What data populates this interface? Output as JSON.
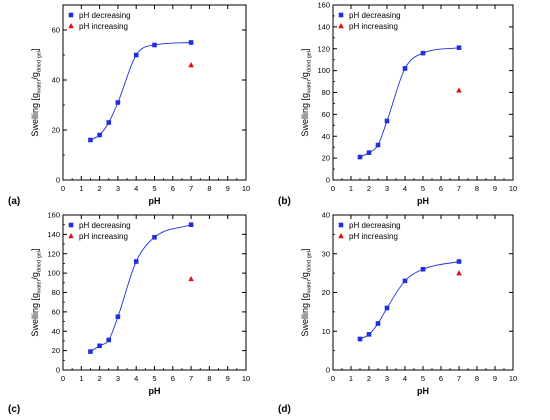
{
  "figure": {
    "legend": {
      "decreasing": "pH decreasing",
      "increasing": "pH increasing"
    },
    "colors": {
      "decreasing": "#1f2fe0",
      "increasing": "#e01010",
      "fit": "#1f2fe0",
      "axis": "#000000"
    }
  },
  "chart_data": [
    {
      "type": "scatter",
      "panel_label": "(a)",
      "xlabel": "pH",
      "ylabel": {
        "main": "Swelling [g",
        "sub1": "water",
        "mid": "/g",
        "sub2": "dried gel",
        "end": "]"
      },
      "xlim": [
        0,
        10
      ],
      "ylim": [
        0,
        70
      ],
      "xticks": [
        0,
        1,
        2,
        3,
        4,
        5,
        6,
        7,
        8,
        9,
        10
      ],
      "yticks": [
        0,
        20,
        40,
        60
      ],
      "legend_position": "top-left",
      "series": [
        {
          "name": "pH decreasing",
          "marker": "square",
          "fit_curve": true,
          "x": [
            1.5,
            2.0,
            2.5,
            3.0,
            4.0,
            5.0,
            7.0
          ],
          "y": [
            16,
            18,
            23,
            31,
            50,
            54,
            55
          ]
        },
        {
          "name": "pH increasing",
          "marker": "triangle",
          "x": [
            7.0
          ],
          "y": [
            46
          ]
        }
      ]
    },
    {
      "type": "scatter",
      "panel_label": "(b)",
      "xlabel": "pH",
      "ylabel": {
        "main": "Swelling [g",
        "sub1": "water",
        "mid": "/g",
        "sub2": "dried gel",
        "end": "]"
      },
      "xlim": [
        0,
        10
      ],
      "ylim": [
        0,
        160
      ],
      "xticks": [
        0,
        1,
        2,
        3,
        4,
        5,
        6,
        7,
        8,
        9,
        10
      ],
      "yticks": [
        0,
        20,
        40,
        60,
        80,
        100,
        120,
        140,
        160
      ],
      "legend_position": "top-left",
      "series": [
        {
          "name": "pH decreasing",
          "marker": "square",
          "fit_curve": true,
          "x": [
            1.5,
            2.0,
            2.5,
            3.0,
            4.0,
            5.0,
            7.0
          ],
          "y": [
            21,
            25,
            32,
            54,
            102,
            116,
            121
          ]
        },
        {
          "name": "pH increasing",
          "marker": "triangle",
          "x": [
            7.0
          ],
          "y": [
            82
          ]
        }
      ]
    },
    {
      "type": "scatter",
      "panel_label": "(c)",
      "xlabel": "pH",
      "ylabel": {
        "main": "Swelling [g",
        "sub1": "water",
        "mid": "/g",
        "sub2": "dried gel",
        "end": "]"
      },
      "xlim": [
        0,
        10
      ],
      "ylim": [
        0,
        160
      ],
      "xticks": [
        0,
        1,
        2,
        3,
        4,
        5,
        6,
        7,
        8,
        9,
        10
      ],
      "yticks": [
        0,
        20,
        40,
        60,
        80,
        100,
        120,
        140,
        160
      ],
      "legend_position": "top-left",
      "series": [
        {
          "name": "pH decreasing",
          "marker": "square",
          "fit_curve": true,
          "x": [
            1.5,
            2.0,
            2.5,
            3.0,
            4.0,
            5.0,
            7.0
          ],
          "y": [
            19,
            25,
            31,
            55,
            112,
            137,
            150
          ]
        },
        {
          "name": "pH increasing",
          "marker": "triangle",
          "x": [
            7.0
          ],
          "y": [
            94
          ]
        }
      ]
    },
    {
      "type": "scatter",
      "panel_label": "(d)",
      "xlabel": "pH",
      "ylabel": {
        "main": "Swelling [g",
        "sub1": "water",
        "mid": "/g",
        "sub2": "dried gel",
        "end": "]"
      },
      "xlim": [
        0,
        10
      ],
      "ylim": [
        0,
        40
      ],
      "xticks": [
        0,
        1,
        2,
        3,
        4,
        5,
        6,
        7,
        8,
        9,
        10
      ],
      "yticks": [
        0,
        10,
        20,
        30,
        40
      ],
      "legend_position": "top-left",
      "series": [
        {
          "name": "pH decreasing",
          "marker": "square",
          "fit_curve": true,
          "x": [
            1.5,
            2.0,
            2.5,
            3.0,
            4.0,
            5.0,
            7.0
          ],
          "y": [
            8,
            9.2,
            12,
            16,
            23,
            26,
            28
          ]
        },
        {
          "name": "pH increasing",
          "marker": "triangle",
          "x": [
            7.0
          ],
          "y": [
            25
          ]
        }
      ]
    }
  ]
}
